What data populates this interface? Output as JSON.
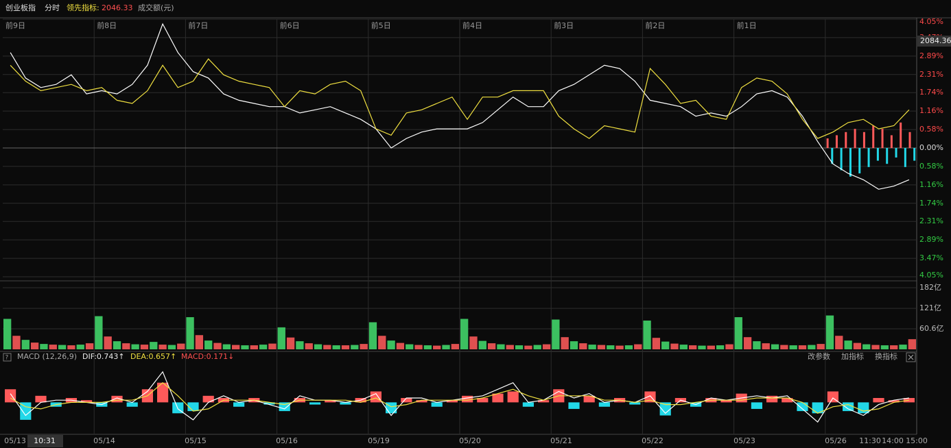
{
  "header": {
    "name": "创业板指",
    "mode": "分时",
    "indicator_label": "领先指标:",
    "indicator_value": 2046.33,
    "volume_label": "成交额(元)"
  },
  "chart_data": [
    {
      "type": "line",
      "day_labels": [
        "前9日",
        "前8日",
        "前7日",
        "前6日",
        "前5日",
        "前4日",
        "前3日",
        "前2日",
        "前1日"
      ],
      "x_labels": [
        "05/13",
        "10:31",
        "05/14",
        "05/15",
        "05/16",
        "05/19",
        "05/20",
        "05/21",
        "05/22",
        "05/23",
        "05/26",
        "11:30",
        "14:00",
        "15:00"
      ],
      "ylim": [
        -4.05,
        4.05
      ],
      "yticks": [
        {
          "value": 4.05,
          "label": "4.05%"
        },
        {
          "value": 3.47,
          "label": "3.47%"
        },
        {
          "value": 2.89,
          "label": "2.89%"
        },
        {
          "value": 2.31,
          "label": "2.31%"
        },
        {
          "value": 1.74,
          "label": "1.74%"
        },
        {
          "value": 1.16,
          "label": "1.16%"
        },
        {
          "value": 0.58,
          "label": "0.58%"
        },
        {
          "value": 0,
          "label": "0.00%"
        },
        {
          "value": -0.58,
          "label": "0.58%"
        },
        {
          "value": -1.16,
          "label": "1.16%"
        },
        {
          "value": -1.74,
          "label": "1.74%"
        },
        {
          "value": -2.31,
          "label": "2.31%"
        },
        {
          "value": -2.89,
          "label": "2.89%"
        },
        {
          "value": -3.47,
          "label": "3.47%"
        },
        {
          "value": -4.05,
          "label": "4.05%"
        }
      ],
      "last_price": 2084.36,
      "series": [
        {
          "color": "#ffffff",
          "values": [
            3.0,
            2.2,
            1.9,
            2.0,
            2.3,
            1.7,
            1.8,
            1.7,
            2.0,
            2.6,
            3.9,
            3.0,
            2.4,
            2.2,
            1.7,
            1.5,
            1.4,
            1.3,
            1.3,
            1.1,
            1.2,
            1.3,
            1.1,
            0.9,
            0.6,
            0.0,
            0.3,
            0.5,
            0.6,
            0.6,
            0.6,
            0.8,
            1.2,
            1.6,
            1.3,
            1.3,
            1.8,
            2.0,
            2.3,
            2.6,
            2.5,
            2.1,
            1.5,
            1.4,
            1.3,
            1.0,
            1.1,
            1.0,
            1.3,
            1.7,
            1.8,
            1.6,
            1.0,
            0.2,
            -0.5,
            -0.8,
            -1.0,
            -1.3,
            -1.2,
            -1.0
          ]
        },
        {
          "color": "#f0e040",
          "values": [
            2.6,
            2.1,
            1.8,
            1.9,
            2.0,
            1.8,
            1.9,
            1.5,
            1.4,
            1.8,
            2.6,
            1.9,
            2.1,
            2.8,
            2.3,
            2.1,
            2.0,
            1.9,
            1.3,
            1.8,
            1.7,
            2.0,
            2.1,
            1.8,
            0.6,
            0.4,
            1.1,
            1.2,
            1.4,
            1.6,
            0.9,
            1.6,
            1.6,
            1.8,
            1.8,
            1.8,
            1.0,
            0.6,
            0.3,
            0.7,
            0.6,
            0.5,
            2.5,
            2.0,
            1.4,
            1.5,
            1.0,
            0.9,
            1.9,
            2.2,
            2.1,
            1.7,
            0.9,
            0.3,
            0.5,
            0.8,
            0.9,
            0.6,
            0.7,
            1.2
          ]
        }
      ],
      "lead_bars": {
        "values": [
          0.3,
          -0.5,
          0.4,
          -0.7,
          0.5,
          -0.9,
          0.6,
          -0.8,
          0.5,
          -0.6,
          0.7,
          -0.4,
          0.6,
          -0.5,
          0.4,
          -0.3,
          0.8,
          -0.6,
          0.5,
          -0.4
        ]
      }
    },
    {
      "type": "bar",
      "ylim": [
        0,
        182
      ],
      "yticks": [
        {
          "value": 182,
          "label": "182亿"
        },
        {
          "value": 121,
          "label": "121亿"
        },
        {
          "value": 60.6,
          "label": "60.6亿"
        }
      ],
      "values": [
        90,
        40,
        28,
        20,
        16,
        14,
        13,
        12,
        14,
        18,
        98,
        38,
        24,
        18,
        15,
        14,
        22,
        14,
        13,
        17,
        95,
        42,
        26,
        19,
        15,
        13,
        12,
        12,
        14,
        17,
        65,
        35,
        24,
        18,
        15,
        13,
        12,
        12,
        13,
        16,
        80,
        40,
        26,
        19,
        15,
        13,
        12,
        11,
        13,
        16,
        90,
        38,
        25,
        18,
        15,
        13,
        12,
        11,
        13,
        15,
        88,
        36,
        24,
        18,
        14,
        13,
        12,
        11,
        12,
        15,
        85,
        34,
        23,
        17,
        14,
        12,
        11,
        11,
        12,
        15,
        95,
        36,
        24,
        18,
        15,
        13,
        12,
        12,
        13,
        16,
        100,
        40,
        26,
        19,
        15,
        13,
        12,
        12,
        14,
        30
      ]
    },
    {
      "type": "macd",
      "title": "MACD (12,26,9)",
      "dif_label": "DIF:0.743↑",
      "dea_label": "DEA:0.657↑",
      "macd_label": "MACD:0.171↓",
      "buttons": [
        "改参数",
        "加指标",
        "换指标"
      ],
      "ylim": [
        -1.4,
        1.8
      ],
      "values": [
        0.6,
        -0.8,
        0.3,
        -0.2,
        0.2,
        0.1,
        -0.2,
        0.3,
        -0.2,
        0.6,
        0.9,
        -0.5,
        -0.4,
        0.3,
        0.2,
        -0.2,
        0.2,
        -0.1,
        -0.4,
        0.2,
        -0.1,
        0.1,
        -0.1,
        0.2,
        0.5,
        -0.5,
        0.2,
        0.1,
        -0.2,
        0.1,
        0.3,
        0.2,
        0.4,
        0.5,
        -0.2,
        0.1,
        0.6,
        -0.3,
        0.3,
        -0.2,
        0.2,
        -0.1,
        0.5,
        -0.6,
        0.2,
        -0.2,
        0.2,
        0.1,
        0.4,
        -0.3,
        0.3,
        0.2,
        -0.4,
        -0.5,
        0.5,
        -0.4,
        -0.5,
        0.2,
        0.1,
        0.2
      ],
      "series": [
        {
          "color": "#ffffff",
          "values": [
            0.4,
            -0.6,
            0.0,
            0.1,
            0.1,
            0.0,
            -0.1,
            0.2,
            0.0,
            0.5,
            1.4,
            -0.3,
            -0.8,
            0.0,
            0.3,
            0.0,
            0.1,
            -0.1,
            -0.3,
            0.3,
            0.1,
            0.1,
            0.0,
            0.1,
            0.4,
            -0.6,
            0.2,
            0.2,
            0.0,
            0.1,
            0.2,
            0.3,
            0.6,
            0.9,
            0.0,
            0.1,
            0.5,
            0.2,
            0.4,
            0.0,
            0.1,
            0.0,
            0.3,
            -0.5,
            0.1,
            -0.1,
            0.2,
            0.1,
            0.2,
            0.3,
            0.2,
            0.3,
            -0.3,
            -0.9,
            0.2,
            -0.3,
            -0.6,
            -0.1,
            0.1,
            0.2
          ]
        },
        {
          "color": "#f0e040",
          "values": [
            0.2,
            -0.2,
            -0.3,
            -0.1,
            0.0,
            0.0,
            0.0,
            0.1,
            0.1,
            0.3,
            0.9,
            0.3,
            -0.4,
            -0.3,
            0.1,
            0.1,
            0.1,
            0.0,
            -0.1,
            0.1,
            0.1,
            0.1,
            0.1,
            0.0,
            0.2,
            -0.2,
            -0.1,
            0.1,
            0.1,
            0.1,
            0.1,
            0.2,
            0.4,
            0.6,
            0.3,
            0.1,
            0.3,
            0.3,
            0.3,
            0.1,
            0.1,
            0.0,
            0.1,
            -0.1,
            -0.1,
            0.0,
            0.1,
            0.1,
            0.1,
            0.2,
            0.2,
            0.2,
            0.0,
            -0.5,
            -0.2,
            -0.1,
            -0.4,
            -0.3,
            0.0,
            0.1
          ]
        }
      ]
    }
  ]
}
